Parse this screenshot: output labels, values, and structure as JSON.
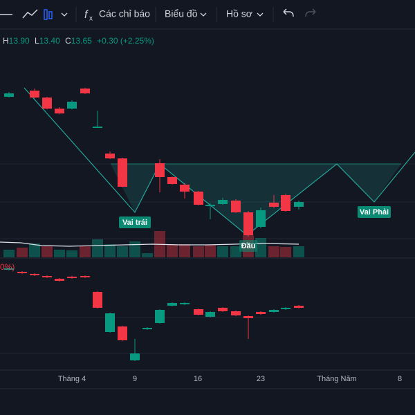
{
  "toolbar": {
    "indicators": "Các chỉ báo",
    "chart": "Biểu đồ",
    "profile": "Hồ sơ"
  },
  "legend": {
    "high_label": "H",
    "high": "13.90",
    "low_label": "L",
    "low": "13.40",
    "close_label": "C",
    "close": "13.65",
    "change": "+0.30 (+2.25%)"
  },
  "pattern_labels": {
    "left_shoulder": "Vai trái",
    "head": "Đầu",
    "right_shoulder": "Vai Phải"
  },
  "lower_pane": {
    "label": "0%)"
  },
  "x_axis": [
    "Tháng 4",
    "9",
    "16",
    "23",
    "Tháng Năm",
    "8"
  ]
}
